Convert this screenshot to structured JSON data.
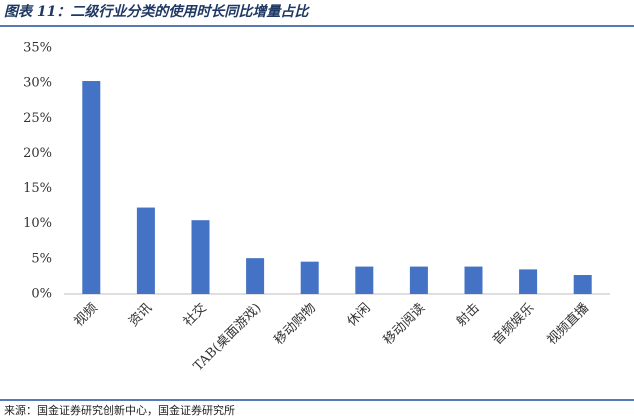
{
  "chart_data": {
    "type": "bar",
    "title": "图表 11：二级行业分类的使用时长同比增量占比",
    "source": "来源：国金证券研究创新中心，国金证券研究所",
    "categories": [
      "视频",
      "资讯",
      "社交",
      "TAB(桌面游戏)",
      "移动购物",
      "休闲",
      "移动阅读",
      "射击",
      "音频娱乐",
      "视频直播"
    ],
    "values": [
      30.3,
      12.3,
      10.5,
      5.1,
      4.6,
      3.9,
      3.9,
      3.9,
      3.5,
      2.7
    ],
    "color": "#4472c4",
    "ylim": [
      0,
      35
    ],
    "yticks": [
      {
        "value": 0,
        "label": "0%"
      },
      {
        "value": 5,
        "label": "5%"
      },
      {
        "value": 10,
        "label": "10%"
      },
      {
        "value": 15,
        "label": "15%"
      },
      {
        "value": 20,
        "label": "20%"
      },
      {
        "value": 25,
        "label": "25%"
      },
      {
        "value": 30,
        "label": "30%"
      },
      {
        "value": 35,
        "label": "35%"
      }
    ],
    "grid": false
  }
}
